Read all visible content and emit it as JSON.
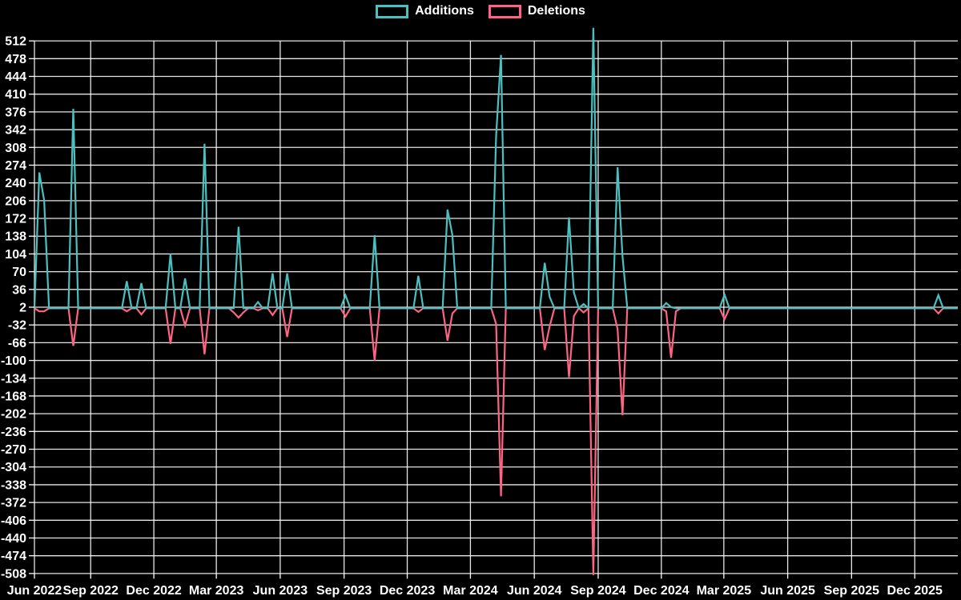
{
  "legend": {
    "items": [
      {
        "label": "Additions",
        "color": "#4bc0c0"
      },
      {
        "label": "Deletions",
        "color": "#ff6384"
      }
    ]
  },
  "colors": {
    "background": "#000000",
    "grid": "#ffffff",
    "text": "#ffffff",
    "additions": "#4bc0c0",
    "deletions": "#ff6384"
  },
  "chart_data": {
    "type": "line",
    "title": "",
    "xlabel": "",
    "ylabel": "",
    "grid": true,
    "legend_position": "top-center",
    "baseline_value": 0,
    "ylim": [
      -519,
      539
    ],
    "y_axis": {
      "ticks": [
        512,
        478,
        444,
        410,
        376,
        342,
        308,
        274,
        240,
        206,
        172,
        138,
        104,
        70,
        36,
        2,
        -32,
        -66,
        -100,
        -134,
        -168,
        -202,
        -236,
        -270,
        -304,
        -338,
        -372,
        -406,
        -440,
        -474,
        -508
      ]
    },
    "x_axis": {
      "start": "2022-06-12",
      "end": "2026-02-01",
      "ticks": [
        {
          "label": "Jun 2022",
          "date": "2022-06-12"
        },
        {
          "label": "Sep 2022",
          "date": "2022-09-01"
        },
        {
          "label": "Dec 2022",
          "date": "2022-12-01"
        },
        {
          "label": "Mar 2023",
          "date": "2023-03-01"
        },
        {
          "label": "Jun 2023",
          "date": "2023-06-01"
        },
        {
          "label": "Sep 2023",
          "date": "2023-09-01"
        },
        {
          "label": "Dec 2023",
          "date": "2023-12-01"
        },
        {
          "label": "Mar 2024",
          "date": "2024-03-01"
        },
        {
          "label": "Jun 2024",
          "date": "2024-06-01"
        },
        {
          "label": "Sep 2024",
          "date": "2024-09-01"
        },
        {
          "label": "Dec 2024",
          "date": "2024-12-01"
        },
        {
          "label": "Mar 2025",
          "date": "2025-03-01"
        },
        {
          "label": "Jun 2025",
          "date": "2025-06-01"
        },
        {
          "label": "Sep 2025",
          "date": "2025-09-01"
        },
        {
          "label": "Dec 2025",
          "date": "2025-12-01"
        }
      ]
    },
    "series": [
      {
        "name": "Additions",
        "color": "#4bc0c0"
      },
      {
        "name": "Deletions",
        "color": "#ff6384"
      }
    ],
    "point_format": [
      "week_start_date",
      "additions",
      "deletions"
    ],
    "points_note": "weekly data; weeks not listed are [0, 0]",
    "points": [
      [
        "2022-06-19",
        260,
        -6
      ],
      [
        "2022-06-26",
        207,
        -6
      ],
      [
        "2022-08-07",
        382,
        -72
      ],
      [
        "2022-10-23",
        52,
        -6
      ],
      [
        "2022-11-13",
        48,
        -12
      ],
      [
        "2022-12-25",
        104,
        -68
      ],
      [
        "2023-01-15",
        57,
        -33
      ],
      [
        "2023-02-12",
        315,
        -88
      ],
      [
        "2023-03-26",
        0,
        -8
      ],
      [
        "2023-04-02",
        156,
        -18
      ],
      [
        "2023-04-09",
        0,
        -8
      ],
      [
        "2023-04-30",
        12,
        -4
      ],
      [
        "2023-05-21",
        67,
        -13
      ],
      [
        "2023-06-11",
        67,
        -55
      ],
      [
        "2023-09-03",
        25,
        -16
      ],
      [
        "2023-10-15",
        140,
        -100
      ],
      [
        "2023-12-17",
        62,
        -7
      ],
      [
        "2024-01-28",
        189,
        -62
      ],
      [
        "2024-02-04",
        140,
        -10
      ],
      [
        "2024-04-07",
        330,
        -30
      ],
      [
        "2024-04-14",
        485,
        -360
      ],
      [
        "2024-06-16",
        87,
        -80
      ],
      [
        "2024-06-23",
        22,
        -35
      ],
      [
        "2024-07-21",
        174,
        -132
      ],
      [
        "2024-07-28",
        30,
        -15
      ],
      [
        "2024-08-11",
        8,
        -8
      ],
      [
        "2024-08-25",
        537,
        -511
      ],
      [
        "2024-09-29",
        270,
        -40
      ],
      [
        "2024-10-06",
        100,
        -205
      ],
      [
        "2024-12-08",
        10,
        -6
      ],
      [
        "2024-12-15",
        2,
        -95
      ],
      [
        "2024-12-22",
        0,
        -6
      ],
      [
        "2025-03-02",
        26,
        -21
      ],
      [
        "2026-01-04",
        25,
        -10
      ]
    ]
  }
}
